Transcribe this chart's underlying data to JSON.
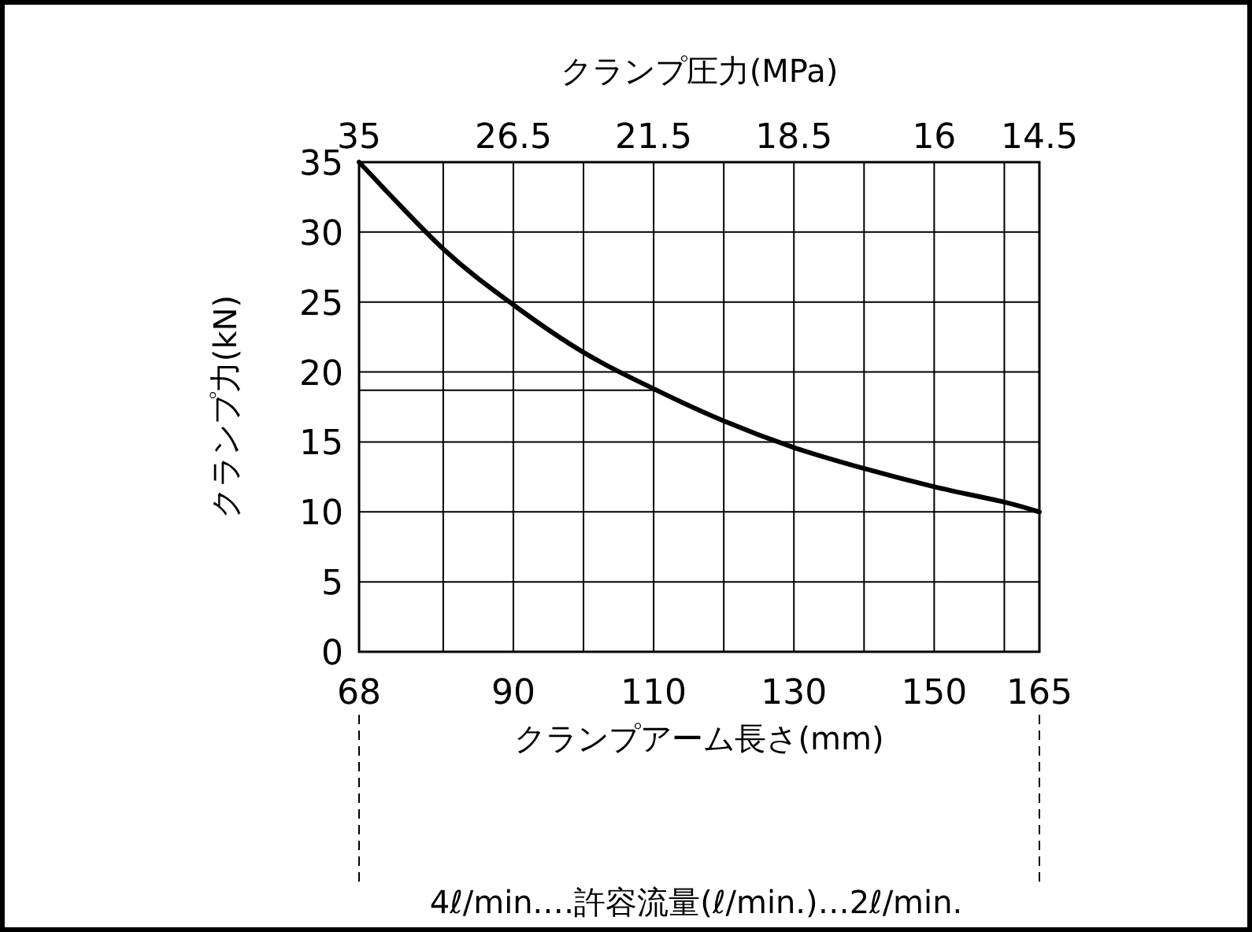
{
  "chart_data": {
    "type": "line",
    "x2label": "クランプ圧力(MPa)",
    "ylabel": "クランプ力(kN)",
    "xlabel": "クランプアーム長さ(mm)",
    "annotations": [
      "4ℓ/min.…許容流量(ℓ/min.)…2ℓ/min.",
      "35",
      "26.5",
      "21.5",
      "18.5",
      "16",
      "14.5"
    ],
    "xlim": [
      68,
      165
    ],
    "xticks": [
      68,
      {
        "value": 80,
        "label": null
      },
      90,
      {
        "value": 100,
        "label": null
      },
      110,
      {
        "value": 120,
        "label": null
      },
      130,
      {
        "value": 140,
        "label": null
      },
      150,
      {
        "value": 160,
        "label": null
      },
      165
    ],
    "ylim": [
      0,
      35
    ],
    "yticks": [
      0,
      5,
      10,
      15,
      20,
      25,
      30,
      35
    ],
    "grid": true,
    "marker": "none",
    "line_style": "solid",
    "ref_lines": [
      {
        "axis": "y",
        "value": 18.7,
        "color": "#000000"
      }
    ],
    "series": [
      {
        "color": "#000000",
        "x": [
          68,
          80,
          90,
          100,
          110,
          120,
          130,
          140,
          150,
          160,
          165
        ],
        "values": [
          35,
          28.8,
          24.8,
          21.4,
          18.8,
          16.5,
          14.6,
          13.1,
          11.8,
          10.7,
          10
        ]
      }
    ]
  }
}
